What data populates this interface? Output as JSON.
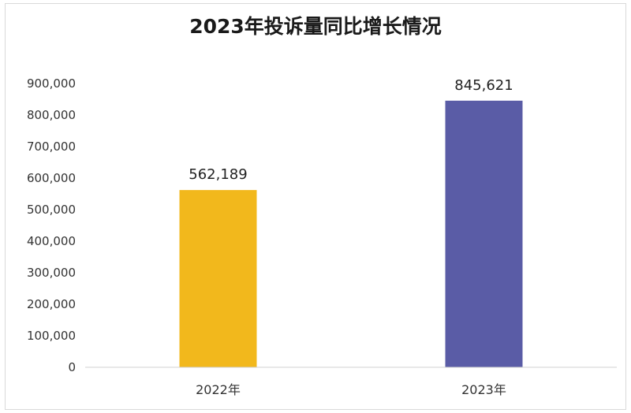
{
  "chart_data": {
    "type": "bar",
    "title": "2023年投诉量同比增长情况",
    "categories": [
      "2022年",
      "2023年"
    ],
    "values": [
      562189,
      845621
    ],
    "data_labels": [
      "562,189",
      "845,621"
    ],
    "bar_colors": [
      "#F2B81C",
      "#5A5CA6"
    ],
    "ylim": [
      0,
      900000
    ],
    "yticks": [
      0,
      100000,
      200000,
      300000,
      400000,
      500000,
      600000,
      700000,
      800000,
      900000
    ],
    "ytick_labels": [
      "0",
      "100,000",
      "200,000",
      "300,000",
      "400,000",
      "500,000",
      "600,000",
      "700,000",
      "800,000",
      "900,000"
    ],
    "grid": false,
    "legend": "none",
    "xlabel": "",
    "ylabel": ""
  }
}
